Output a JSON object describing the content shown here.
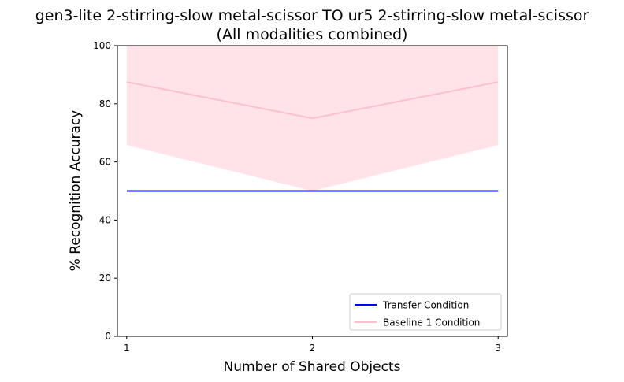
{
  "chart_data": {
    "type": "line",
    "title_line1": "gen3-lite 2-stirring-slow metal-scissor TO ur5 2-stirring-slow metal-scissor",
    "title_line2": "(All modalities combined)",
    "xlabel": "Number of Shared Objects",
    "ylabel": "% Recognition Accuracy",
    "x": [
      1,
      2,
      3
    ],
    "xlim": [
      0.95,
      3.05
    ],
    "ylim": [
      0,
      100
    ],
    "xticks": [
      1,
      2,
      3
    ],
    "yticks": [
      0,
      20,
      40,
      60,
      80,
      100
    ],
    "grid": false,
    "legend_position": "lower right",
    "series": [
      {
        "name": "Transfer Condition",
        "color": "#0000ff",
        "values": [
          50,
          50,
          50
        ]
      },
      {
        "name": "Baseline 1 Condition",
        "color": "#ffc0cb",
        "values": [
          87.5,
          75,
          87.5
        ],
        "band_lower": [
          65.8,
          50,
          65.8
        ],
        "band_upper": [
          100,
          100,
          100
        ]
      }
    ]
  }
}
